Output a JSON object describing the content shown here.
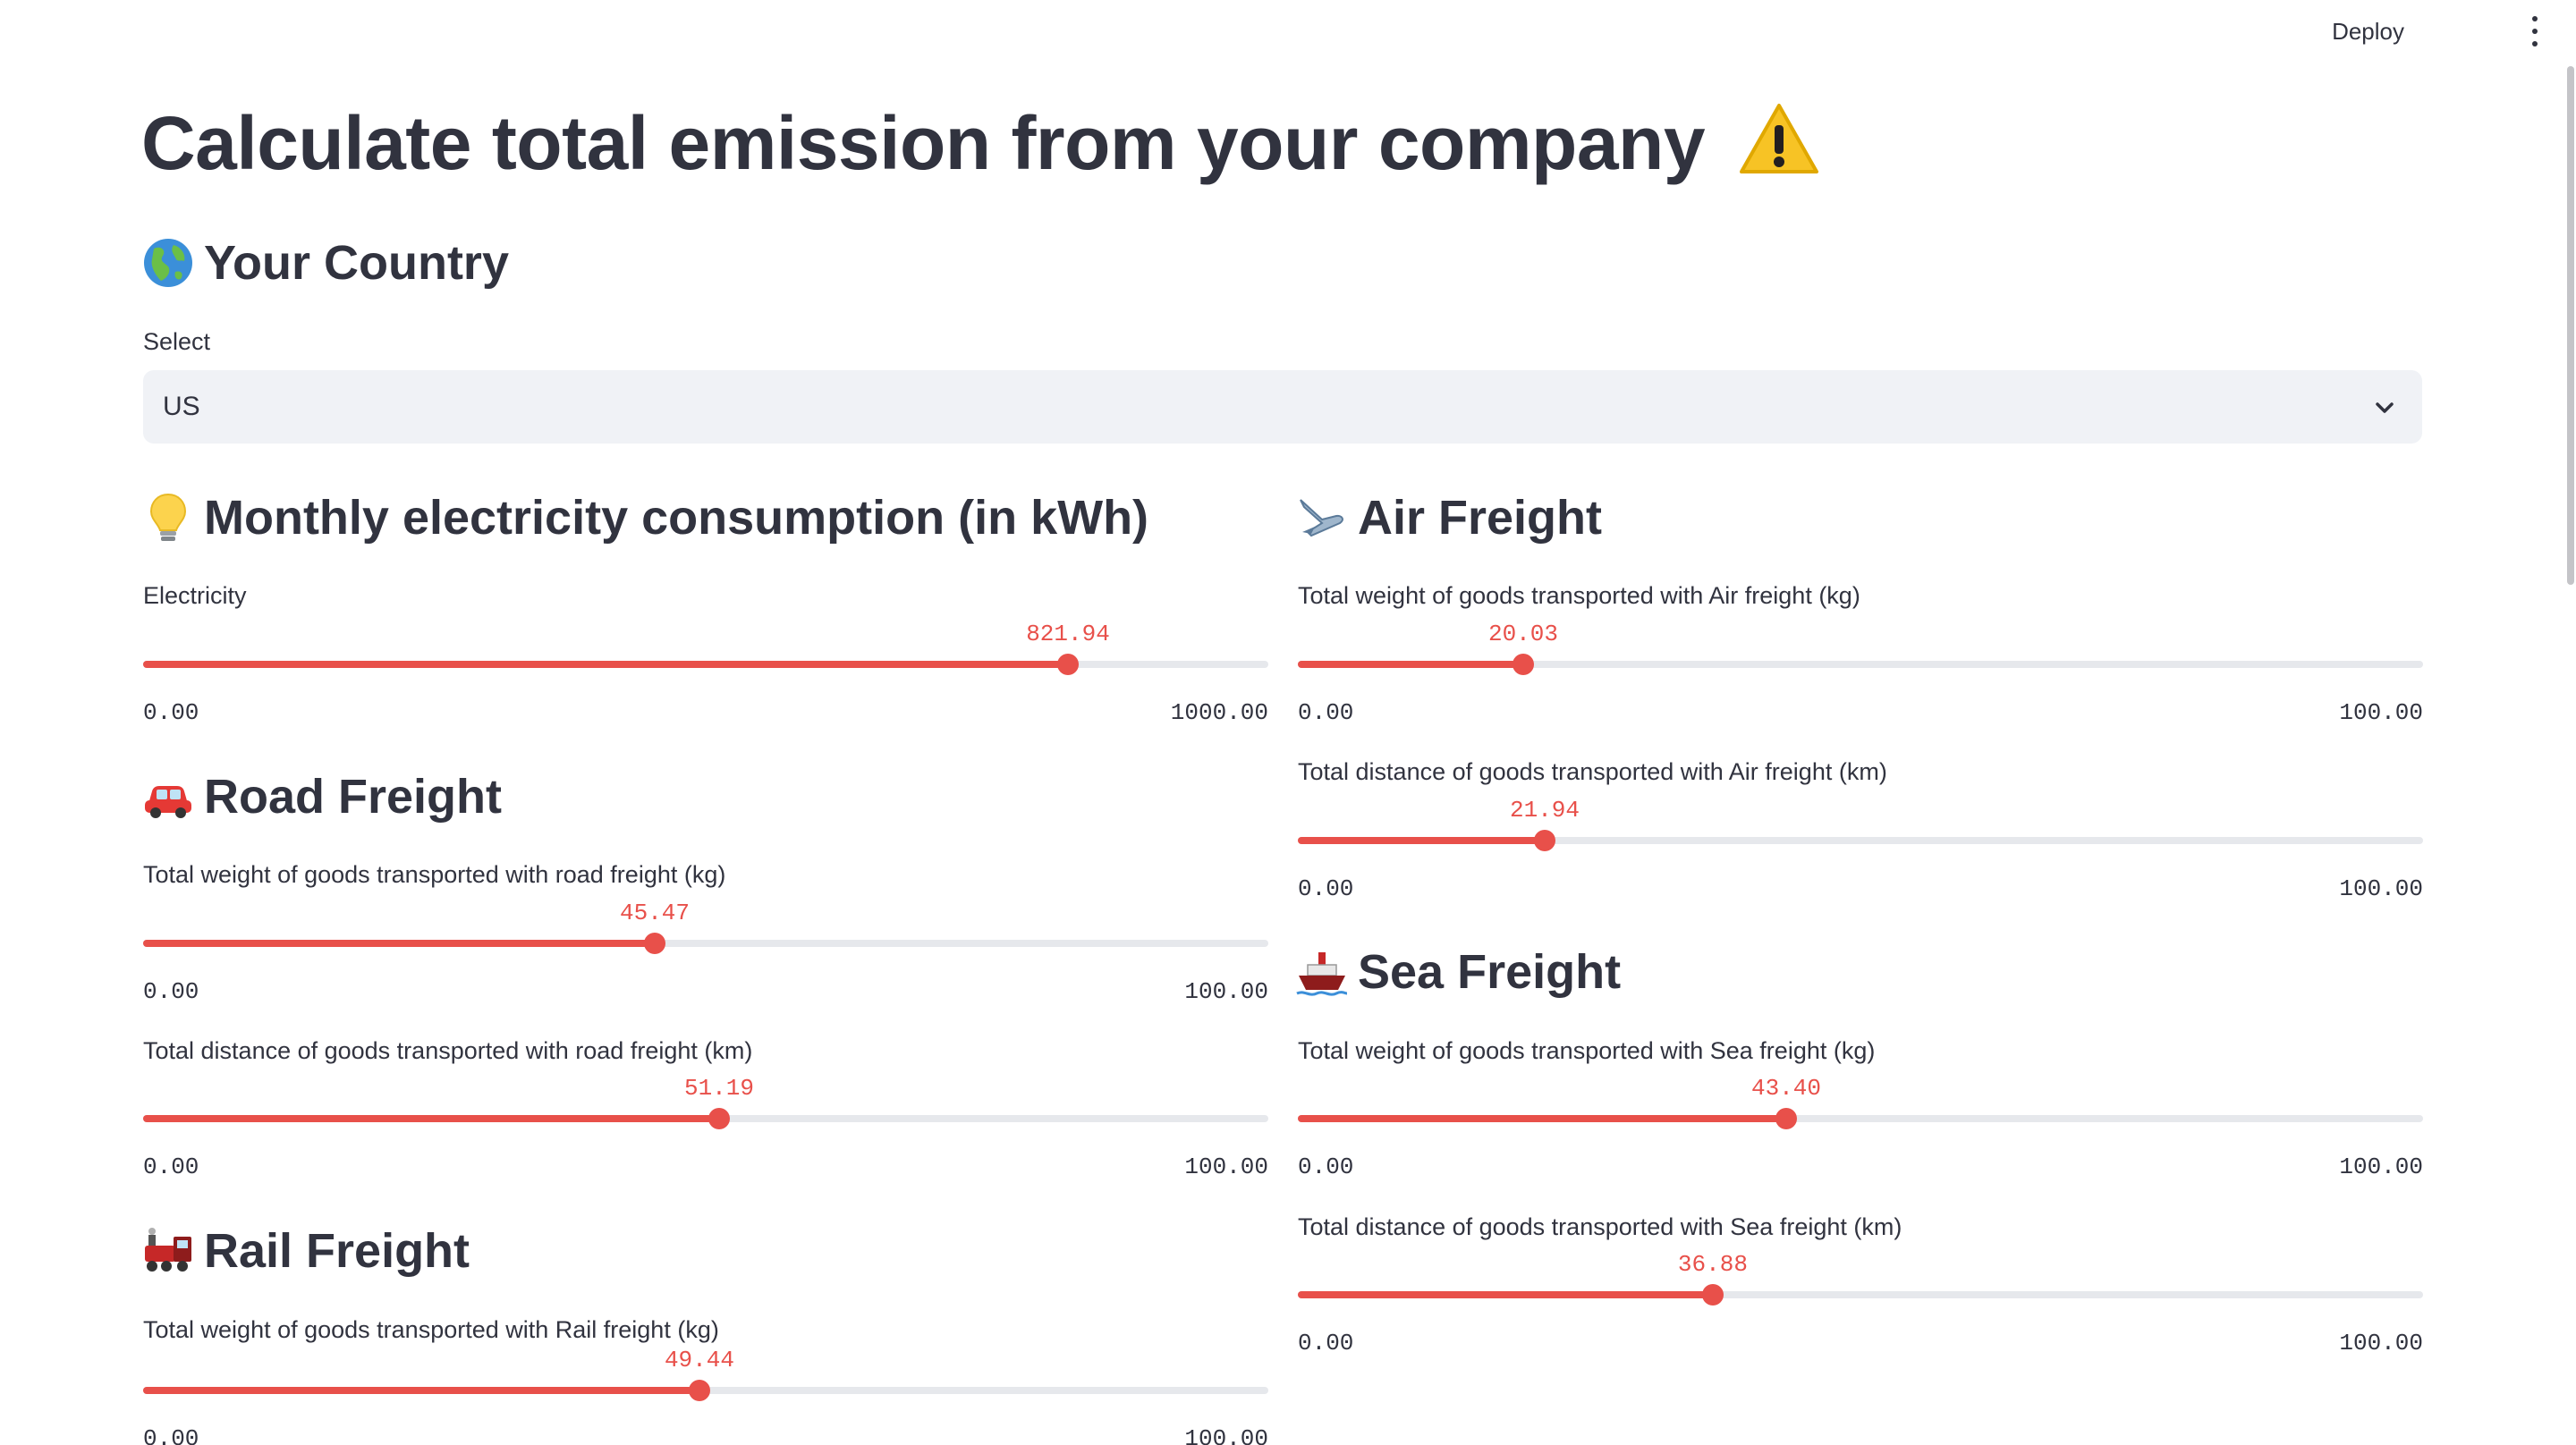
{
  "header": {
    "deploy_label": "Deploy"
  },
  "title": "Calculate total emission from your company",
  "country": {
    "heading": "Your Country",
    "select_label": "Select",
    "selected": "US"
  },
  "electricity": {
    "heading": "Monthly electricity consumption (in kWh)",
    "slider": {
      "label": "Electricity",
      "value": "821.94",
      "min": "0.00",
      "max": "1000.00",
      "fraction": 0.82194
    }
  },
  "road": {
    "heading": "Road Freight",
    "weight": {
      "label": "Total weight of goods transported with road freight (kg)",
      "value": "45.47",
      "min": "0.00",
      "max": "100.00",
      "fraction": 0.4547
    },
    "distance": {
      "label": "Total distance of goods transported with road freight (km)",
      "value": "51.19",
      "min": "0.00",
      "max": "100.00",
      "fraction": 0.5119
    }
  },
  "rail": {
    "heading": "Rail Freight",
    "weight": {
      "label": "Total weight of goods transported with Rail freight (kg)",
      "value": "49.44",
      "min": "0.00",
      "max": "100.00",
      "fraction": 0.4944
    }
  },
  "air": {
    "heading": "Air Freight",
    "weight": {
      "label": "Total weight of goods transported with Air freight (kg)",
      "value": "20.03",
      "min": "0.00",
      "max": "100.00",
      "fraction": 0.2003
    },
    "distance": {
      "label": "Total distance of goods transported with Air freight (km)",
      "value": "21.94",
      "min": "0.00",
      "max": "100.00",
      "fraction": 0.2194
    }
  },
  "sea": {
    "heading": "Sea Freight",
    "weight": {
      "label": "Total weight of goods transported with Sea freight (kg)",
      "value": "43.40",
      "min": "0.00",
      "max": "100.00",
      "fraction": 0.434
    },
    "distance": {
      "label": "Total distance of goods transported with Sea freight (km)",
      "value": "36.88",
      "min": "0.00",
      "max": "100.00",
      "fraction": 0.3688
    }
  },
  "colors": {
    "accent": "#e8504a",
    "text": "#31333f",
    "track": "#e6e8ec",
    "select_bg": "#f0f2f6"
  },
  "icons": {
    "title": "warning-icon",
    "country": "globe-icon",
    "electricity": "light-bulb-icon",
    "road": "car-icon",
    "rail": "locomotive-icon",
    "air": "airplane-icon",
    "sea": "ship-icon"
  }
}
